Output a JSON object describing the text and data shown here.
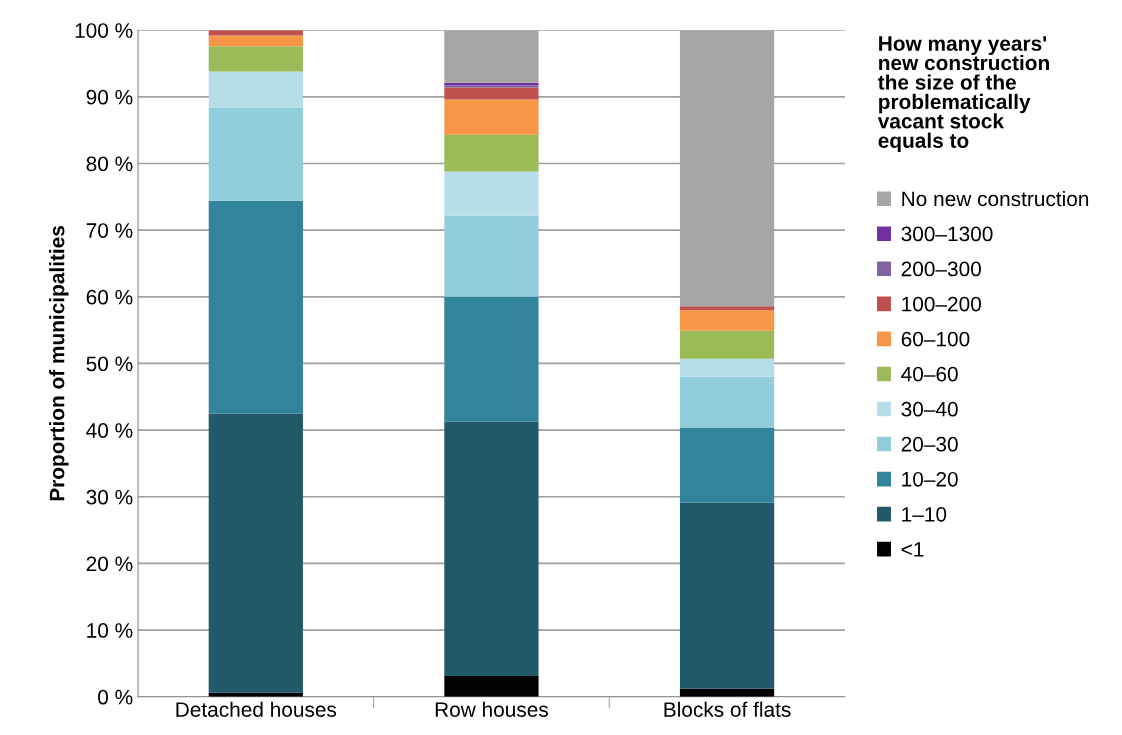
{
  "chart_data": {
    "type": "bar",
    "stacked": true,
    "ylabel": "Proportion of municipalities",
    "legend_title": "How many years'\nnew construction\nthe size of the\nproblematically\nvacant stock\nequals to",
    "categories": [
      "Detached houses",
      "Row houses",
      "Blocks of flats"
    ],
    "series": [
      {
        "name": "<1",
        "color": "#000000",
        "values": [
          0.6,
          3.1,
          1.2
        ]
      },
      {
        "name": "1–10",
        "color": "#215968",
        "values": [
          41.9,
          38.2,
          27.9
        ]
      },
      {
        "name": "10–20",
        "color": "#31849b",
        "values": [
          31.9,
          18.7,
          11.3
        ]
      },
      {
        "name": "20–30",
        "color": "#92cddc",
        "values": [
          14.0,
          12.2,
          7.6
        ]
      },
      {
        "name": "30–40",
        "color": "#b7dee8",
        "values": [
          5.4,
          6.6,
          2.7
        ]
      },
      {
        "name": "40–60",
        "color": "#9bbb59",
        "values": [
          3.8,
          5.5,
          4.2
        ]
      },
      {
        "name": "60–100",
        "color": "#f79646",
        "values": [
          1.6,
          5.3,
          3.1
        ]
      },
      {
        "name": "100–200",
        "color": "#c0504d",
        "values": [
          0.8,
          1.8,
          0.6
        ]
      },
      {
        "name": "200–300",
        "color": "#8064a2",
        "values": [
          0,
          0.3,
          0
        ]
      },
      {
        "name": "300–1300",
        "color": "#7030a0",
        "values": [
          0,
          0.4,
          0
        ]
      },
      {
        "name": "No new construction",
        "color": "#a6a6a6",
        "values": [
          0,
          7.9,
          41.4
        ]
      }
    ],
    "ylim": [
      0,
      100
    ],
    "yticks": [
      {
        "value": 0,
        "label": "0 %"
      },
      {
        "value": 10,
        "label": "10 %"
      },
      {
        "value": 20,
        "label": "20 %"
      },
      {
        "value": 30,
        "label": "30 %"
      },
      {
        "value": 40,
        "label": "40 %"
      },
      {
        "value": 50,
        "label": "50 %"
      },
      {
        "value": 60,
        "label": "60 %"
      },
      {
        "value": 70,
        "label": "70 %"
      },
      {
        "value": 80,
        "label": "80 %"
      },
      {
        "value": 90,
        "label": "90 %"
      },
      {
        "value": 100,
        "label": "100 %"
      }
    ],
    "grid": "y",
    "legend": "right"
  }
}
